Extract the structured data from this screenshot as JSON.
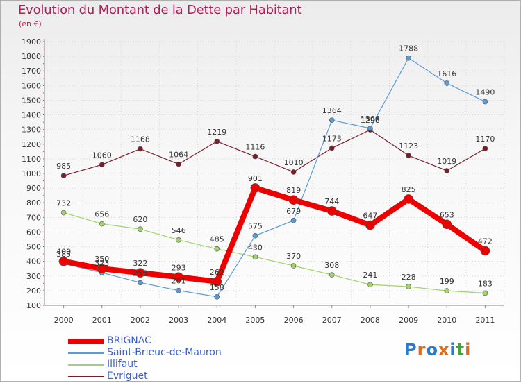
{
  "title": "Evolution du Montant de la Dette par Habitant",
  "unit": "(en €)",
  "logo": {
    "text": "Proxiti",
    "colors": [
      "#2a7bc8",
      "#e06b1a",
      "#2a7bc8",
      "#e06b1a",
      "#2a7bc8",
      "#3fa535",
      "#e06b1a"
    ]
  },
  "chart_data": {
    "type": "line",
    "title": "Evolution du Montant de la Dette par Habitant",
    "ylabel": "(en €)",
    "xlabel": "",
    "ylim": [
      100,
      1900
    ],
    "yticks": [
      100,
      200,
      300,
      400,
      500,
      600,
      700,
      800,
      900,
      1000,
      1100,
      1200,
      1300,
      1400,
      1500,
      1600,
      1700,
      1800,
      1900
    ],
    "grid": true,
    "legend_position": "bottom-left",
    "x": [
      "2000",
      "2001",
      "2002",
      "2003",
      "2004",
      "2005",
      "2006",
      "2007",
      "2008",
      "2009",
      "2010",
      "2011"
    ],
    "series": [
      {
        "name": "Evriguet",
        "color": "#7a1f2a",
        "width": 1.2,
        "marker": 3.5,
        "values": [
          985,
          1060,
          1168,
          1064,
          1219,
          1116,
          1010,
          1173,
          1298,
          1123,
          1019,
          1170
        ]
      },
      {
        "name": "Illifaut",
        "color": "#9fd468",
        "width": 1.2,
        "marker": 3.5,
        "values": [
          732,
          656,
          620,
          546,
          485,
          430,
          370,
          308,
          241,
          228,
          199,
          183
        ]
      },
      {
        "name": "Saint-Brieuc-de-Mauron",
        "color": "#5b9bd5",
        "width": 1.2,
        "marker": 3.5,
        "values": [
          385,
          323,
          255,
          201,
          158,
          575,
          679,
          1364,
          1308,
          1788,
          1616,
          1490
        ]
      },
      {
        "name": "BRIGNAC",
        "color": "#ee0000",
        "width": 8,
        "marker": 6.5,
        "values": [
          400,
          350,
          322,
          293,
          262,
          901,
          819,
          744,
          647,
          825,
          653,
          472
        ]
      }
    ],
    "legend": [
      {
        "name": "BRIGNAC",
        "color": "#ee0000"
      },
      {
        "name": "Saint-Brieuc-de-Mauron",
        "color": "#5b9bd5"
      },
      {
        "name": "Illifaut",
        "color": "#9fd468"
      },
      {
        "name": "Evriguet",
        "color": "#7a1f2a"
      }
    ]
  }
}
